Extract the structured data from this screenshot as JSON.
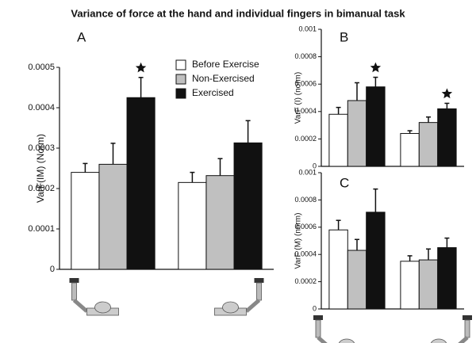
{
  "title": "Variance of force at the hand and individual fingers in bimanual task",
  "chart_data": [
    {
      "type": "bar",
      "panel": "A",
      "y_label": "VarF(IM) (Norm)",
      "categories": [
        null,
        null
      ],
      "ylim": [
        0,
        0.0005
      ],
      "yticks": [
        0,
        0.0001,
        0.0002,
        0.0003,
        0.0004,
        0.0005
      ],
      "legend": true,
      "series": [
        {
          "name": "Before Exercise",
          "color": "#ffffff",
          "values": [
            0.00024,
            0.000215
          ],
          "errors": [
            2.2e-05,
            2.5e-05
          ],
          "significant": [
            false,
            false
          ]
        },
        {
          "name": "Non-Exercised",
          "color": "#c0c0c0",
          "values": [
            0.00026,
            0.000232
          ],
          "errors": [
            5.2e-05,
            4.2e-05
          ],
          "significant": [
            false,
            false
          ]
        },
        {
          "name": "Exercised",
          "color": "#111111",
          "values": [
            0.000425,
            0.000313
          ],
          "errors": [
            5e-05,
            5.5e-05
          ],
          "significant": [
            true,
            false
          ]
        }
      ]
    },
    {
      "type": "bar",
      "panel": "B",
      "y_label": "VarF (I) (norm)",
      "categories": [
        null,
        null
      ],
      "ylim": [
        0,
        0.001
      ],
      "yticks": [
        0,
        0.0002,
        0.0004,
        0.0006,
        0.0008,
        0.001
      ],
      "legend": false,
      "series": [
        {
          "color": "#ffffff",
          "values": [
            0.00038,
            0.00024
          ],
          "errors": [
            5e-05,
            2e-05
          ],
          "significant": [
            false,
            false
          ]
        },
        {
          "color": "#c0c0c0",
          "values": [
            0.00048,
            0.00032
          ],
          "errors": [
            0.00013,
            4e-05
          ],
          "significant": [
            false,
            false
          ]
        },
        {
          "color": "#111111",
          "values": [
            0.00058,
            0.00042
          ],
          "errors": [
            7e-05,
            4e-05
          ],
          "significant": [
            true,
            true
          ]
        }
      ]
    },
    {
      "type": "bar",
      "panel": "C",
      "y_label": "VarF (M) (norm)",
      "categories": [
        null,
        null
      ],
      "ylim": [
        0,
        0.001
      ],
      "yticks": [
        0,
        0.0002,
        0.0004,
        0.0006,
        0.0008,
        0.001
      ],
      "legend": false,
      "series": [
        {
          "color": "#ffffff",
          "values": [
            0.00058,
            0.00035
          ],
          "errors": [
            7e-05,
            4e-05
          ],
          "significant": [
            false,
            false
          ]
        },
        {
          "color": "#c0c0c0",
          "values": [
            0.00043,
            0.00036
          ],
          "errors": [
            8e-05,
            8e-05
          ],
          "significant": [
            false,
            false
          ]
        },
        {
          "color": "#111111",
          "values": [
            0.00071,
            0.00045
          ],
          "errors": [
            0.00017,
            7e-05
          ],
          "significant": [
            false,
            false
          ]
        }
      ]
    }
  ]
}
